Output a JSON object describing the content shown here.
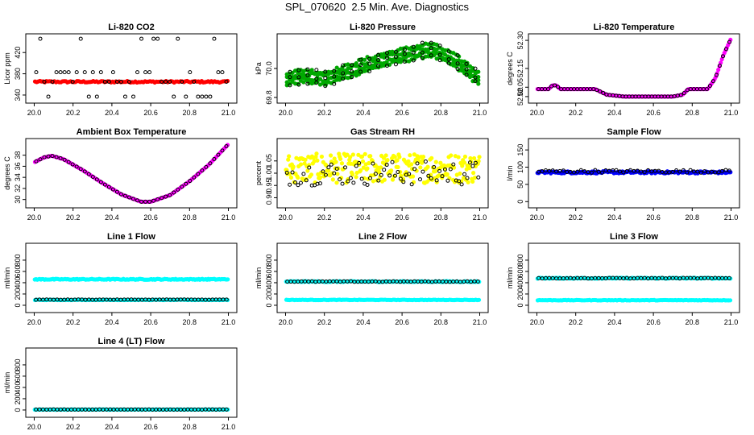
{
  "page_title": "SPL_070620  2.5 Min. Ave. Diagnostics",
  "chart_data": [
    {
      "type": "scatter",
      "title": "Li-820 CO2",
      "ylabel": "Licor ppm",
      "xlim": [
        20.0,
        21.0
      ],
      "ylim": [
        330,
        450
      ],
      "x_ticks": [
        "20.0",
        "20.2",
        "20.4",
        "20.6",
        "20.8",
        "21.0"
      ],
      "y_ticks": [
        {
          "v": 340,
          "l": "340"
        },
        {
          "v": 380,
          "l": "380"
        },
        {
          "v": 420,
          "l": "420"
        }
      ],
      "series": [
        {
          "color": "#ff0000",
          "marker": "circle",
          "pattern": {
            "kind": "band",
            "y": 365,
            "spread": 1.5,
            "n": 120
          }
        },
        {
          "color": "#000000",
          "marker": "circle-open",
          "pattern": {
            "kind": "levels",
            "levels": [
              337,
              365,
              383,
              446
            ],
            "n": 48
          }
        }
      ]
    },
    {
      "type": "scatter",
      "title": "Li-820 Pressure",
      "ylabel": "kPa",
      "xlim": [
        20.0,
        21.0
      ],
      "ylim": [
        69.78,
        70.22
      ],
      "x_ticks": [
        "20.0",
        "20.2",
        "20.4",
        "20.6",
        "20.8",
        "21.0"
      ],
      "y_ticks": [
        {
          "v": 69.8,
          "l": "69.8"
        },
        {
          "v": 70.0,
          "l": "70.0"
        }
      ],
      "series": [
        {
          "color": "#00a800",
          "marker": "circle",
          "pattern": {
            "kind": "curve",
            "pts": [
              [
                20.0,
                69.93
              ],
              [
                20.1,
                69.95
              ],
              [
                20.2,
                69.93
              ],
              [
                20.3,
                69.97
              ],
              [
                20.4,
                70.02
              ],
              [
                20.5,
                70.06
              ],
              [
                20.6,
                70.09
              ],
              [
                20.7,
                70.12
              ],
              [
                20.75,
                70.13
              ],
              [
                20.85,
                70.07
              ],
              [
                20.95,
                69.98
              ],
              [
                21.0,
                69.92
              ]
            ],
            "bands": [
              -0.04,
              -0.015,
              0.015,
              0.04
            ],
            "n": 70
          }
        },
        {
          "color": "#000000",
          "marker": "circle-open",
          "pattern": {
            "kind": "curve",
            "pts": [
              [
                20.0,
                69.93
              ],
              [
                20.1,
                69.95
              ],
              [
                20.2,
                69.93
              ],
              [
                20.3,
                69.97
              ],
              [
                20.4,
                70.02
              ],
              [
                20.5,
                70.06
              ],
              [
                20.6,
                70.09
              ],
              [
                20.7,
                70.12
              ],
              [
                20.75,
                70.13
              ],
              [
                20.85,
                70.07
              ],
              [
                20.95,
                69.98
              ],
              [
                21.0,
                69.92
              ]
            ],
            "bands": [
              -0.045,
              0.0,
              0.045
            ],
            "n": 22
          }
        }
      ]
    },
    {
      "type": "scatter",
      "title": "Li-820 Temperature",
      "ylabel": "degrees C",
      "xlim": [
        20.0,
        21.0
      ],
      "ylim": [
        51.98,
        52.32
      ],
      "x_ticks": [
        "20.0",
        "20.2",
        "20.4",
        "20.6",
        "20.8",
        "21.0"
      ],
      "y_ticks": [
        {
          "v": 52.0,
          "l": "52.00"
        },
        {
          "v": 52.05,
          "l": "52.05"
        },
        {
          "v": 52.15,
          "l": "52.15"
        },
        {
          "v": 52.3,
          "l": "52.30"
        }
      ],
      "series": [
        {
          "color": "#ff00ff",
          "marker": "circle",
          "pattern": {
            "kind": "curve",
            "pts": [
              [
                20.0,
                52.04
              ],
              [
                20.06,
                52.04
              ],
              [
                20.08,
                52.06
              ],
              [
                20.1,
                52.06
              ],
              [
                20.12,
                52.04
              ],
              [
                20.3,
                52.04
              ],
              [
                20.36,
                52.01
              ],
              [
                20.45,
                52.0
              ],
              [
                20.7,
                52.0
              ],
              [
                20.75,
                52.01
              ],
              [
                20.78,
                52.04
              ],
              [
                20.88,
                52.04
              ],
              [
                20.92,
                52.1
              ],
              [
                20.96,
                52.22
              ],
              [
                21.0,
                52.31
              ]
            ],
            "bands": [
              0
            ],
            "n": 160
          }
        },
        {
          "color": "#000000",
          "marker": "circle-open",
          "pattern": {
            "kind": "curve",
            "pts": [
              [
                20.0,
                52.04
              ],
              [
                20.06,
                52.04
              ],
              [
                20.08,
                52.06
              ],
              [
                20.1,
                52.06
              ],
              [
                20.12,
                52.04
              ],
              [
                20.3,
                52.04
              ],
              [
                20.36,
                52.01
              ],
              [
                20.45,
                52.0
              ],
              [
                20.7,
                52.0
              ],
              [
                20.75,
                52.01
              ],
              [
                20.78,
                52.04
              ],
              [
                20.88,
                52.04
              ],
              [
                20.92,
                52.1
              ],
              [
                20.96,
                52.22
              ],
              [
                21.0,
                52.31
              ]
            ],
            "bands": [
              0
            ],
            "n": 60
          }
        }
      ]
    },
    {
      "type": "scatter",
      "title": "Ambient Box Temperature",
      "ylabel": "degrees C",
      "xlim": [
        20.0,
        21.0
      ],
      "ylim": [
        29.0,
        40.5
      ],
      "x_ticks": [
        "20.0",
        "20.2",
        "20.4",
        "20.6",
        "20.8",
        "21.0"
      ],
      "y_ticks": [
        {
          "v": 30,
          "l": "30"
        },
        {
          "v": 32,
          "l": "32"
        },
        {
          "v": 34,
          "l": "34"
        },
        {
          "v": 36,
          "l": "36"
        },
        {
          "v": 38,
          "l": "38"
        }
      ],
      "series": [
        {
          "color": "#ff00ff",
          "marker": "circle",
          "pattern": {
            "kind": "curve",
            "pts": [
              [
                20.0,
                36.7
              ],
              [
                20.05,
                37.6
              ],
              [
                20.09,
                37.9
              ],
              [
                20.15,
                37.3
              ],
              [
                20.25,
                35.3
              ],
              [
                20.35,
                33.0
              ],
              [
                20.45,
                30.9
              ],
              [
                20.55,
                29.6
              ],
              [
                20.6,
                29.6
              ],
              [
                20.7,
                30.8
              ],
              [
                20.8,
                33.3
              ],
              [
                20.9,
                36.3
              ],
              [
                21.0,
                40.0
              ]
            ],
            "bands": [
              0
            ],
            "n": 120
          }
        },
        {
          "color": "#000000",
          "marker": "circle-open",
          "pattern": {
            "kind": "curve",
            "pts": [
              [
                20.0,
                36.7
              ],
              [
                20.05,
                37.6
              ],
              [
                20.09,
                37.9
              ],
              [
                20.15,
                37.3
              ],
              [
                20.25,
                35.3
              ],
              [
                20.35,
                33.0
              ],
              [
                20.45,
                30.9
              ],
              [
                20.55,
                29.6
              ],
              [
                20.6,
                29.6
              ],
              [
                20.7,
                30.8
              ],
              [
                20.8,
                33.3
              ],
              [
                20.9,
                36.3
              ],
              [
                21.0,
                40.0
              ]
            ],
            "bands": [
              0
            ],
            "n": 48
          }
        }
      ]
    },
    {
      "type": "scatter",
      "title": "Gas Stream RH",
      "ylabel": "percent",
      "xlim": [
        20.0,
        21.0
      ],
      "ylim": [
        0.87,
        1.13
      ],
      "x_ticks": [
        "20.0",
        "20.2",
        "20.4",
        "20.6",
        "20.8",
        "21.0"
      ],
      "y_ticks": [
        {
          "v": 0.9,
          "l": "0.90"
        },
        {
          "v": 0.95,
          "l": "0.95"
        },
        {
          "v": 1.0,
          "l": "1.00"
        },
        {
          "v": 1.05,
          "l": "1.05"
        }
      ],
      "series": [
        {
          "color": "#ffff00",
          "marker": "circle",
          "pattern": {
            "kind": "noise",
            "y": 1.02,
            "spread": 0.06,
            "n": 260
          }
        },
        {
          "color": "#000000",
          "marker": "circle-open",
          "pattern": {
            "kind": "noise",
            "y": 1.0,
            "spread": 0.05,
            "n": 70
          }
        }
      ]
    },
    {
      "type": "scatter",
      "title": "Sample Flow",
      "ylabel": "l/min",
      "xlim": [
        20.0,
        21.0
      ],
      "ylim": [
        -10,
        175
      ],
      "x_ticks": [
        "20.0",
        "20.2",
        "20.4",
        "20.6",
        "20.8",
        "21.0"
      ],
      "y_ticks": [
        {
          "v": 0,
          "l": "0"
        },
        {
          "v": 50,
          "l": "50"
        },
        {
          "v": 100,
          "l": "100"
        },
        {
          "v": 150,
          "l": "150"
        }
      ],
      "series": [
        {
          "color": "#0000ff",
          "marker": "circle",
          "pattern": {
            "kind": "band",
            "y": 85,
            "spread": 3,
            "n": 160
          }
        },
        {
          "color": "#000000",
          "marker": "circle-open",
          "pattern": {
            "kind": "band",
            "y": 88,
            "spread": 4,
            "n": 55
          }
        }
      ]
    },
    {
      "type": "scatter",
      "title": "Line 1 Flow",
      "ylabel": "ml/min",
      "xlim": [
        20.0,
        21.0
      ],
      "ylim": [
        -80,
        1050
      ],
      "x_ticks": [
        "20.0",
        "20.2",
        "20.4",
        "20.6",
        "20.8",
        "21.0"
      ],
      "y_ticks": [
        {
          "v": 0,
          "l": "0"
        },
        {
          "v": 200,
          "l": "200"
        },
        {
          "v": 400,
          "l": "400"
        },
        {
          "v": 600,
          "l": "600"
        },
        {
          "v": 800,
          "l": "800"
        }
      ],
      "series": [
        {
          "color": "#00ffff",
          "marker": "circle",
          "pattern": {
            "kind": "band",
            "y": 460,
            "spread": 8,
            "n": 160
          }
        },
        {
          "color": "#00ffff",
          "marker": "circle",
          "pattern": {
            "kind": "band",
            "y": 95,
            "spread": 4,
            "n": 120
          }
        },
        {
          "color": "#000000",
          "marker": "circle-open",
          "pattern": {
            "kind": "band",
            "y": 100,
            "spread": 3,
            "n": 55
          }
        }
      ]
    },
    {
      "type": "scatter",
      "title": "Line 2 Flow",
      "ylabel": "ml/min",
      "xlim": [
        20.0,
        21.0
      ],
      "ylim": [
        -80,
        1050
      ],
      "x_ticks": [
        "20.0",
        "20.2",
        "20.4",
        "20.6",
        "20.8",
        "21.0"
      ],
      "y_ticks": [
        {
          "v": 0,
          "l": "0"
        },
        {
          "v": 200,
          "l": "200"
        },
        {
          "v": 400,
          "l": "400"
        },
        {
          "v": 600,
          "l": "600"
        },
        {
          "v": 800,
          "l": "800"
        }
      ],
      "series": [
        {
          "color": "#00ffff",
          "marker": "circle",
          "pattern": {
            "kind": "band",
            "y": 420,
            "spread": 8,
            "n": 160
          }
        },
        {
          "color": "#00ffff",
          "marker": "circle",
          "pattern": {
            "kind": "band",
            "y": 95,
            "spread": 4,
            "n": 120
          }
        },
        {
          "color": "#000000",
          "marker": "circle-open",
          "pattern": {
            "kind": "band",
            "y": 420,
            "spread": 5,
            "n": 55
          }
        }
      ]
    },
    {
      "type": "scatter",
      "title": "Line 3 Flow",
      "ylabel": "ml/min",
      "xlim": [
        20.0,
        21.0
      ],
      "ylim": [
        -80,
        1050
      ],
      "x_ticks": [
        "20.0",
        "20.2",
        "20.4",
        "20.6",
        "20.8",
        "21.0"
      ],
      "y_ticks": [
        {
          "v": 0,
          "l": "0"
        },
        {
          "v": 200,
          "l": "200"
        },
        {
          "v": 400,
          "l": "400"
        },
        {
          "v": 600,
          "l": "600"
        },
        {
          "v": 800,
          "l": "800"
        }
      ],
      "series": [
        {
          "color": "#00ffff",
          "marker": "circle",
          "pattern": {
            "kind": "band",
            "y": 480,
            "spread": 8,
            "n": 160
          }
        },
        {
          "color": "#00ffff",
          "marker": "circle",
          "pattern": {
            "kind": "band",
            "y": 90,
            "spread": 4,
            "n": 120
          }
        },
        {
          "color": "#000000",
          "marker": "circle-open",
          "pattern": {
            "kind": "band",
            "y": 480,
            "spread": 5,
            "n": 55
          }
        }
      ]
    },
    {
      "type": "scatter",
      "title": "Line 4 (LT) Flow",
      "ylabel": "ml/min",
      "xlim": [
        20.0,
        21.0
      ],
      "ylim": [
        -80,
        1050
      ],
      "x_ticks": [
        "20.0",
        "20.2",
        "20.4",
        "20.6",
        "20.8",
        "21.0"
      ],
      "y_ticks": [
        {
          "v": 0,
          "l": "0"
        },
        {
          "v": 200,
          "l": "200"
        },
        {
          "v": 400,
          "l": "400"
        },
        {
          "v": 600,
          "l": "600"
        },
        {
          "v": 800,
          "l": "800"
        }
      ],
      "series": [
        {
          "color": "#00ffff",
          "marker": "circle",
          "pattern": {
            "kind": "band",
            "y": 8,
            "spread": 3,
            "n": 160
          }
        },
        {
          "color": "#000000",
          "marker": "circle-open",
          "pattern": {
            "kind": "band",
            "y": 8,
            "spread": 2,
            "n": 55
          }
        }
      ]
    }
  ]
}
